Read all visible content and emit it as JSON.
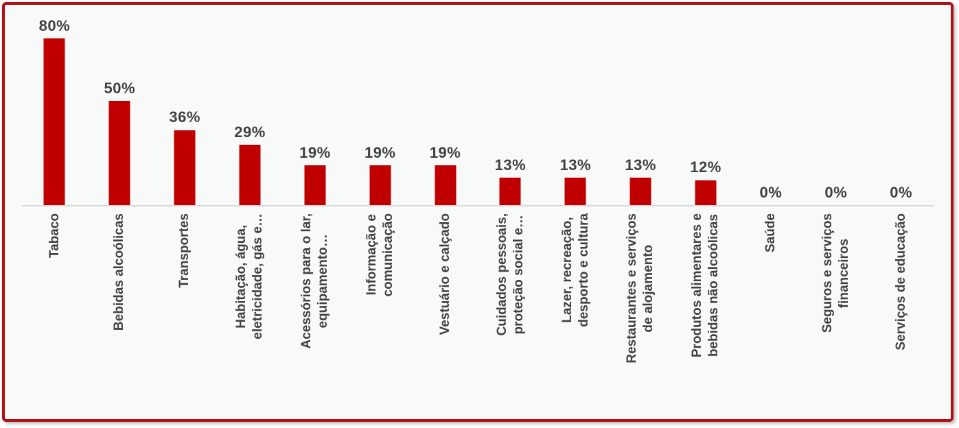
{
  "window": {
    "background": "#FFFFFF"
  },
  "frame": {
    "border_color": "#B00E12",
    "background": "#F8F9F9",
    "shadow": "soft gray drop shadow bottom-right"
  },
  "chart_data": {
    "type": "bar",
    "title": "",
    "subtitle": "",
    "xlabel": "",
    "ylabel": "",
    "categories": [
      "Tabaco",
      "Bebidas alcoólicas",
      "Transportes",
      "Habitação, água,\neletricidade, gás e…",
      "Acessórios para o lar,\nequipamento…",
      "Informação e\ncomunicação",
      "Vestuário e calçado",
      "Cuidados pessoais,\nproteção social e…",
      "Lazer, recreação,\ndesporto e cultura",
      "Restaurantes e serviços\nde alojamento",
      "Produtos alimentares e\nbebidas não alcoólicas",
      "Saúde",
      "Seguros e serviços\nfinanceiros",
      "Serviços de educação"
    ],
    "values": [
      80,
      50,
      36,
      29,
      19,
      19,
      19,
      13,
      13,
      13,
      12,
      0,
      0,
      0
    ],
    "value_labels": [
      "80%",
      "50%",
      "36%",
      "29%",
      "19%",
      "19%",
      "19%",
      "13%",
      "13%",
      "13%",
      "12%",
      "0%",
      "0%",
      "0%"
    ],
    "ylim": [
      0,
      96
    ],
    "grid": false,
    "legend": false,
    "category_label_rotation_deg": 90,
    "bar_color": "#C00000",
    "data_label_color": "#404040",
    "category_label_color": "#404040",
    "axis_line_color": "#D9D9D9"
  }
}
